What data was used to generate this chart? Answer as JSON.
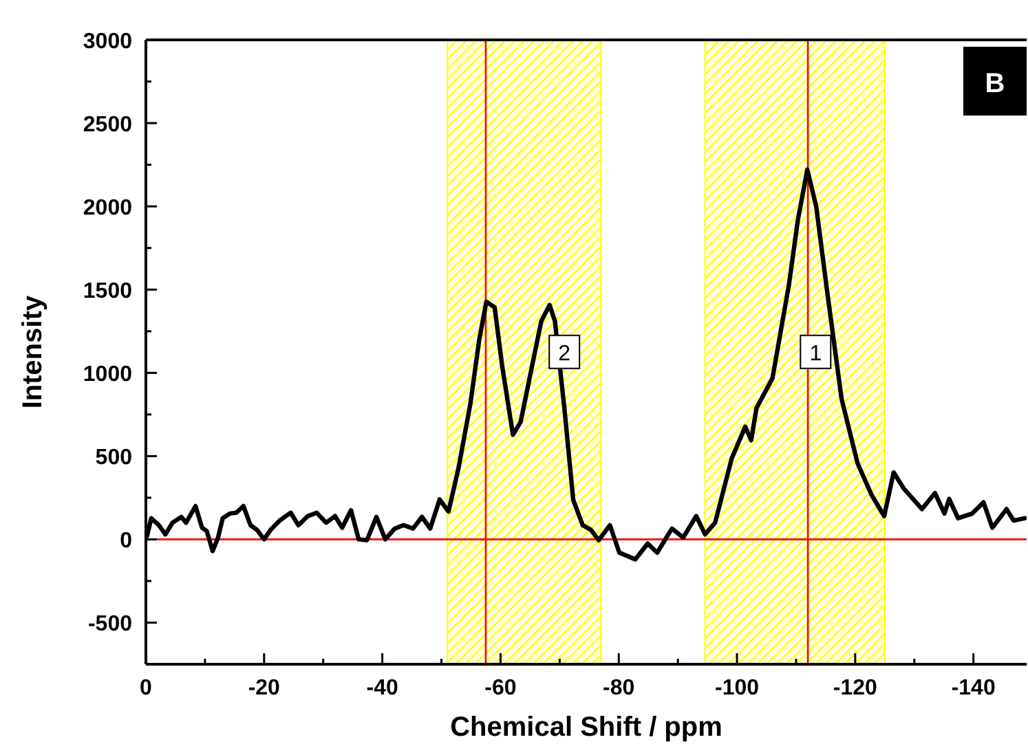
{
  "chart_data": {
    "type": "line",
    "xlabel": "Chemical Shift / ppm",
    "ylabel": "Intensity",
    "xlim": [
      0,
      -149
    ],
    "ylim": [
      -750,
      3000
    ],
    "xticks": [
      0,
      {
        "value": -10,
        "label": null
      },
      -20,
      {
        "value": -30,
        "label": null
      },
      -40,
      {
        "value": -50,
        "label": null
      },
      -60,
      {
        "value": -70,
        "label": null
      },
      -80,
      {
        "value": -90,
        "label": null
      },
      -100,
      {
        "value": -110,
        "label": null
      },
      -120,
      {
        "value": -130,
        "label": null
      },
      -140
    ],
    "yticks": [
      -500,
      {
        "value": -250,
        "label": null
      },
      0,
      {
        "value": 250,
        "label": null
      },
      500,
      {
        "value": 750,
        "label": null
      },
      1000,
      {
        "value": 1250,
        "label": null
      },
      1500,
      {
        "value": 1750,
        "label": null
      },
      2000,
      {
        "value": 2250,
        "label": null
      },
      2500,
      {
        "value": 2750,
        "label": null
      },
      3000
    ],
    "grid": false,
    "line_style": "solid",
    "marker": "none",
    "series": [
      {
        "color": "#000000",
        "x": [
          -0.2,
          -0.9,
          -2.2,
          -3.3,
          -4.5,
          -6.0,
          -6.8,
          -8.4,
          -9.5,
          -10.3,
          -11.3,
          -12.2,
          -13.0,
          -14.2,
          -15.3,
          -16.5,
          -17.7,
          -18.8,
          -20.0,
          -21.1,
          -22.7,
          -24.5,
          -25.8,
          -27.4,
          -28.9,
          -30.5,
          -32.0,
          -33.2,
          -34.7,
          -36.0,
          -37.4,
          -39.0,
          -40.5,
          -42.1,
          -43.6,
          -45.2,
          -46.7,
          -48.1,
          -49.7,
          -51.2,
          -52.9,
          -54.9,
          -56.4,
          -57.6,
          -59.0,
          -60.3,
          -62.1,
          -63.4,
          -65.3,
          -66.9,
          -68.3,
          -69.2,
          -70.8,
          -72.3,
          -73.9,
          -75.3,
          -76.6,
          -78.5,
          -80.1,
          -82.8,
          -84.9,
          -86.5,
          -89.0,
          -90.9,
          -93.1,
          -94.6,
          -96.3,
          -99.1,
          -101.4,
          -102.4,
          -103.3,
          -106.0,
          -108.8,
          -110.3,
          -111.9,
          -113.4,
          -115.3,
          -117.7,
          -120.4,
          -122.8,
          -124.9,
          -126.5,
          -128.2,
          -131.3,
          -133.5,
          -135.1,
          -135.9,
          -137.4,
          -139.8,
          -141.7,
          -143.2,
          -145.6,
          -146.8,
          -148.7
        ],
        "values": [
          20,
          127,
          85,
          30,
          100,
          135,
          100,
          200,
          70,
          50,
          -70,
          10,
          127,
          155,
          160,
          200,
          85,
          57,
          0,
          57,
          115,
          160,
          85,
          140,
          160,
          100,
          140,
          70,
          175,
          0,
          -5,
          135,
          0,
          65,
          85,
          65,
          135,
          65,
          240,
          167,
          430,
          815,
          1200,
          1427,
          1394,
          1036,
          628,
          705,
          1036,
          1311,
          1408,
          1311,
          788,
          237,
          85,
          57,
          -5,
          85,
          -80,
          -120,
          -25,
          -80,
          65,
          11,
          140,
          30,
          100,
          485,
          677,
          595,
          788,
          967,
          1532,
          1918,
          2221,
          2000,
          1477,
          843,
          457,
          265,
          140,
          402,
          306,
          182,
          278,
          155,
          243,
          127,
          155,
          223,
          70,
          182,
          113,
          127
        ]
      }
    ],
    "bands": [
      {
        "axis": "x",
        "from": -51,
        "to": -77,
        "color": "#ffff00"
      },
      {
        "axis": "x",
        "from": -94.6,
        "to": -125,
        "color": "#ffff00"
      }
    ],
    "ref_lines": [
      {
        "axis": "x",
        "value": -57.5,
        "color": "#ff0000"
      },
      {
        "axis": "x",
        "value": -112,
        "color": "#ff0000"
      },
      {
        "axis": "y",
        "value": 0,
        "color": "#ff0000"
      }
    ],
    "annotations": [
      {
        "text": "2",
        "x": -70.8,
        "y": 1126
      },
      {
        "text": "1",
        "x": -113.3,
        "y": 1126
      },
      "B"
    ]
  }
}
